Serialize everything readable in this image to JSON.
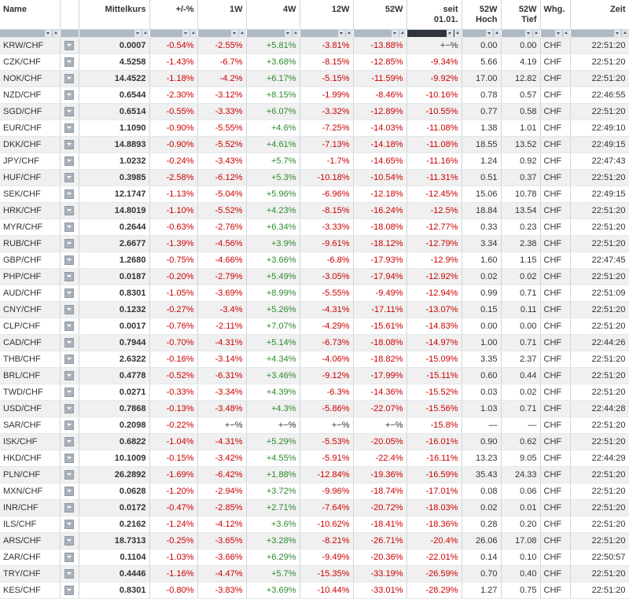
{
  "columns": {
    "name": "Name",
    "mittelkurs": "Mittelkurs",
    "pct": "+/-%",
    "w1": "1W",
    "w4": "4W",
    "w12": "12W",
    "w52": "52W",
    "seit_line1": "seit",
    "seit_line2": "01.01.",
    "hoch_line1": "52W",
    "hoch_line2": "Hoch",
    "tief_line1": "52W",
    "tief_line2": "Tief",
    "whg": "Whg.",
    "zeit": "Zeit"
  },
  "icons": {
    "row_menu": "dropdown-menu-icon",
    "sort_down": "sort-descending-icon",
    "sort_up": "sort-ascending-icon"
  },
  "colors": {
    "negative": "#cc0000",
    "positive": "#2d8a2d",
    "active_sort": "#2f353b"
  },
  "rows": [
    [
      "KRW/CHF",
      "0.0007",
      "-0.54%",
      "-2.55%",
      "+5.81%",
      "-3.81%",
      "-13.88%",
      "+−%",
      "0.00",
      "0.00",
      "CHF",
      "22:51:20"
    ],
    [
      "CZK/CHF",
      "4.5258",
      "-1.43%",
      "-6.7%",
      "+3.68%",
      "-8.15%",
      "-12.85%",
      "-9.34%",
      "5.66",
      "4.19",
      "CHF",
      "22:51:20"
    ],
    [
      "NOK/CHF",
      "14.4522",
      "-1.18%",
      "-4.2%",
      "+6.17%",
      "-5.15%",
      "-11.59%",
      "-9.92%",
      "17.00",
      "12.82",
      "CHF",
      "22:51:20"
    ],
    [
      "NZD/CHF",
      "0.6544",
      "-2.30%",
      "-3.12%",
      "+8.15%",
      "-1.99%",
      "-8.46%",
      "-10.16%",
      "0.78",
      "0.57",
      "CHF",
      "22:46:55"
    ],
    [
      "SGD/CHF",
      "0.6514",
      "-0.55%",
      "-3.33%",
      "+6.07%",
      "-3.32%",
      "-12.89%",
      "-10.55%",
      "0.77",
      "0.58",
      "CHF",
      "22:51:20"
    ],
    [
      "EUR/CHF",
      "1.1090",
      "-0.90%",
      "-5.55%",
      "+4.6%",
      "-7.25%",
      "-14.03%",
      "-11.08%",
      "1.38",
      "1.01",
      "CHF",
      "22:49:10"
    ],
    [
      "DKK/CHF",
      "14.8893",
      "-0.90%",
      "-5.52%",
      "+4.61%",
      "-7.13%",
      "-14.18%",
      "-11.08%",
      "18.55",
      "13.52",
      "CHF",
      "22:49:15"
    ],
    [
      "JPY/CHF",
      "1.0232",
      "-0.24%",
      "-3.43%",
      "+5.7%",
      "-1.7%",
      "-14.65%",
      "-11.16%",
      "1.24",
      "0.92",
      "CHF",
      "22:47:43"
    ],
    [
      "HUF/CHF",
      "0.3985",
      "-2.58%",
      "-6.12%",
      "+5.3%",
      "-10.18%",
      "-10.54%",
      "-11.31%",
      "0.51",
      "0.37",
      "CHF",
      "22:51:20"
    ],
    [
      "SEK/CHF",
      "12.1747",
      "-1.13%",
      "-5.04%",
      "+5.96%",
      "-6.96%",
      "-12.18%",
      "-12.45%",
      "15.06",
      "10.78",
      "CHF",
      "22:49:15"
    ],
    [
      "HRK/CHF",
      "14.8019",
      "-1.10%",
      "-5.52%",
      "+4.23%",
      "-8.15%",
      "-16.24%",
      "-12.5%",
      "18.84",
      "13.54",
      "CHF",
      "22:51:20"
    ],
    [
      "MYR/CHF",
      "0.2644",
      "-0.63%",
      "-2.76%",
      "+6.34%",
      "-3.33%",
      "-18.08%",
      "-12.77%",
      "0.33",
      "0.23",
      "CHF",
      "22:51:20"
    ],
    [
      "RUB/CHF",
      "2.6677",
      "-1.39%",
      "-4.56%",
      "+3.9%",
      "-9.61%",
      "-18.12%",
      "-12.79%",
      "3.34",
      "2.38",
      "CHF",
      "22:51:20"
    ],
    [
      "GBP/CHF",
      "1.2680",
      "-0.75%",
      "-4.66%",
      "+3.66%",
      "-6.8%",
      "-17.93%",
      "-12.9%",
      "1.60",
      "1.15",
      "CHF",
      "22:47:45"
    ],
    [
      "PHP/CHF",
      "0.0187",
      "-0.20%",
      "-2.79%",
      "+5.49%",
      "-3.05%",
      "-17.94%",
      "-12.92%",
      "0.02",
      "0.02",
      "CHF",
      "22:51:20"
    ],
    [
      "AUD/CHF",
      "0.8301",
      "-1.05%",
      "-3.69%",
      "+8.99%",
      "-5.55%",
      "-9.49%",
      "-12.94%",
      "0.99",
      "0.71",
      "CHF",
      "22:51:09"
    ],
    [
      "CNY/CHF",
      "0.1232",
      "-0.27%",
      "-3.4%",
      "+5.26%",
      "-4.31%",
      "-17.11%",
      "-13.07%",
      "0.15",
      "0.11",
      "CHF",
      "22:51:20"
    ],
    [
      "CLP/CHF",
      "0.0017",
      "-0.76%",
      "-2.11%",
      "+7.07%",
      "-4.29%",
      "-15.61%",
      "-14.83%",
      "0.00",
      "0.00",
      "CHF",
      "22:51:20"
    ],
    [
      "CAD/CHF",
      "0.7944",
      "-0.70%",
      "-4.31%",
      "+5.14%",
      "-6.73%",
      "-18.08%",
      "-14.97%",
      "1.00",
      "0.71",
      "CHF",
      "22:44:26"
    ],
    [
      "THB/CHF",
      "2.6322",
      "-0.16%",
      "-3.14%",
      "+4.34%",
      "-4.06%",
      "-18.82%",
      "-15.09%",
      "3.35",
      "2.37",
      "CHF",
      "22:51:20"
    ],
    [
      "BRL/CHF",
      "0.4778",
      "-0.52%",
      "-6.31%",
      "+3.46%",
      "-9.12%",
      "-17.99%",
      "-15.11%",
      "0.60",
      "0.44",
      "CHF",
      "22:51:20"
    ],
    [
      "TWD/CHF",
      "0.0271",
      "-0.33%",
      "-3.34%",
      "+4.39%",
      "-6.3%",
      "-14.36%",
      "-15.52%",
      "0.03",
      "0.02",
      "CHF",
      "22:51:20"
    ],
    [
      "USD/CHF",
      "0.7868",
      "-0.13%",
      "-3.48%",
      "+4.3%",
      "-5.86%",
      "-22.07%",
      "-15.56%",
      "1.03",
      "0.71",
      "CHF",
      "22:44:28"
    ],
    [
      "SAR/CHF",
      "0.2098",
      "-0.22%",
      "+−%",
      "+−%",
      "+−%",
      "+−%",
      "-15.8%",
      "—",
      "—",
      "CHF",
      "22:51:20"
    ],
    [
      "ISK/CHF",
      "0.6822",
      "-1.04%",
      "-4.31%",
      "+5.29%",
      "-5.53%",
      "-20.05%",
      "-16.01%",
      "0.90",
      "0.62",
      "CHF",
      "22:51:20"
    ],
    [
      "HKD/CHF",
      "10.1009",
      "-0.15%",
      "-3.42%",
      "+4.55%",
      "-5.91%",
      "-22.4%",
      "-16.11%",
      "13.23",
      "9.05",
      "CHF",
      "22:44:29"
    ],
    [
      "PLN/CHF",
      "26.2892",
      "-1.69%",
      "-6.42%",
      "+1.88%",
      "-12.84%",
      "-19.36%",
      "-16.59%",
      "35.43",
      "24.33",
      "CHF",
      "22:51:20"
    ],
    [
      "MXN/CHF",
      "0.0628",
      "-1.20%",
      "-2.94%",
      "+3.72%",
      "-9.96%",
      "-18.74%",
      "-17.01%",
      "0.08",
      "0.06",
      "CHF",
      "22:51:20"
    ],
    [
      "INR/CHF",
      "0.0172",
      "-0.47%",
      "-2.85%",
      "+2.71%",
      "-7.64%",
      "-20.72%",
      "-18.03%",
      "0.02",
      "0.01",
      "CHF",
      "22:51:20"
    ],
    [
      "ILS/CHF",
      "0.2162",
      "-1.24%",
      "-4.12%",
      "+3.6%",
      "-10.62%",
      "-18.41%",
      "-18.36%",
      "0.28",
      "0.20",
      "CHF",
      "22:51:20"
    ],
    [
      "ARS/CHF",
      "18.7313",
      "-0.25%",
      "-3.65%",
      "+3.28%",
      "-8.21%",
      "-26.71%",
      "-20.4%",
      "26.06",
      "17.08",
      "CHF",
      "22:51:20"
    ],
    [
      "ZAR/CHF",
      "0.1104",
      "-1.03%",
      "-3.66%",
      "+6.29%",
      "-9.49%",
      "-20.36%",
      "-22.01%",
      "0.14",
      "0.10",
      "CHF",
      "22:50:57"
    ],
    [
      "TRY/CHF",
      "0.4446",
      "-1.16%",
      "-4.47%",
      "+5.7%",
      "-15.35%",
      "-33.19%",
      "-26.59%",
      "0.70",
      "0.40",
      "CHF",
      "22:51:20"
    ],
    [
      "KES/CHF",
      "0.8301",
      "-0.80%",
      "-3.83%",
      "+3.69%",
      "-10.44%",
      "-33.01%",
      "-28.29%",
      "1.27",
      "0.75",
      "CHF",
      "22:51:20"
    ]
  ]
}
